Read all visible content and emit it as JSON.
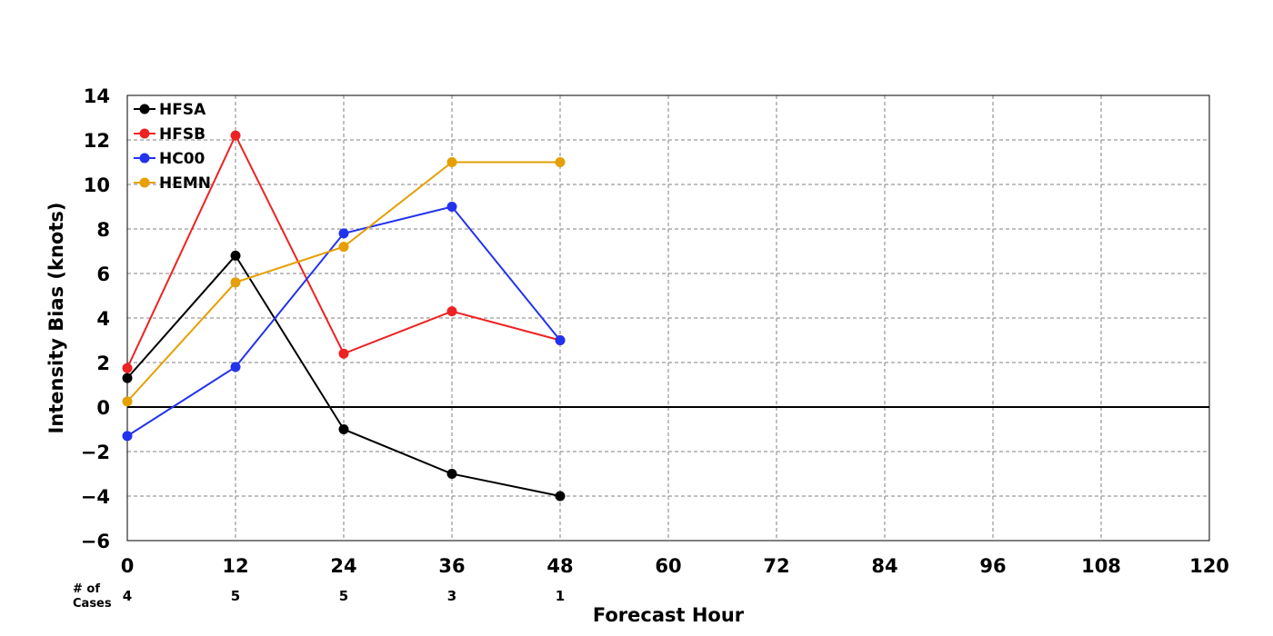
{
  "chart_data": {
    "type": "line",
    "xlabel": "Forecast Hour",
    "ylabel": "Intensity Bias (knots)",
    "xlim": [
      0,
      120
    ],
    "ylim": [
      -6,
      14
    ],
    "xticks": [
      0,
      12,
      24,
      36,
      48,
      60,
      72,
      84,
      96,
      108,
      120
    ],
    "yticks": [
      -6,
      -4,
      -2,
      0,
      2,
      4,
      6,
      8,
      10,
      12,
      14
    ],
    "ytick_labels": [
      "−6",
      "−4",
      "−2",
      "0",
      "2",
      "4",
      "6",
      "8",
      "10",
      "12",
      "14"
    ],
    "grid": true,
    "legend_position": "top-left",
    "x": [
      0,
      12,
      24,
      36,
      48
    ],
    "series": [
      {
        "name": "HFSA",
        "color": "#000000",
        "values": [
          1.3,
          6.8,
          -1.0,
          -3.0,
          -4.0
        ]
      },
      {
        "name": "HFSB",
        "color": "#ee2222",
        "values": [
          1.75,
          12.2,
          2.4,
          4.3,
          3.0
        ]
      },
      {
        "name": "HC00",
        "color": "#2233ee",
        "values": [
          -1.3,
          1.8,
          7.8,
          9.0,
          3.0
        ]
      },
      {
        "name": "HEMN",
        "color": "#e69f00",
        "values": [
          0.25,
          5.6,
          7.2,
          11.0,
          11.0
        ]
      }
    ],
    "cases_label_line1": "# of",
    "cases_label_line2": "Cases",
    "cases": [
      {
        "x": 0,
        "count": "4"
      },
      {
        "x": 12,
        "count": "5"
      },
      {
        "x": 24,
        "count": "5"
      },
      {
        "x": 36,
        "count": "3"
      },
      {
        "x": 48,
        "count": "1"
      }
    ]
  }
}
